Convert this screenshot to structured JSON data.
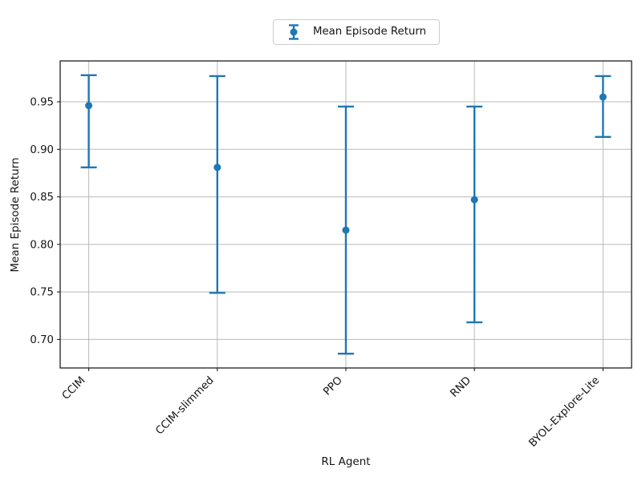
{
  "figure": {
    "xlabel": "RL Agent",
    "ylabel": "Mean Episode Return",
    "legend": {
      "label": "Mean Episode Return"
    },
    "colors": {
      "series": "#1f77b4",
      "grid": "#b9b9b9",
      "spine": "#1f1f1f",
      "text": "#151515",
      "legend_border": "#cccccc",
      "background": "#ffffff"
    }
  },
  "chart_data": {
    "type": "scatter",
    "subtype": "errorbar-points",
    "title": "",
    "xlabel": "RL Agent",
    "ylabel": "Mean Episode Return",
    "categories": [
      "CCIM",
      "CCIM-slimmed",
      "PPO",
      "RND",
      "BYOL-Explore-Lite"
    ],
    "series": [
      {
        "name": "Mean Episode Return",
        "means": [
          0.946,
          0.881,
          0.815,
          0.847,
          0.955
        ],
        "err_upper_abs": [
          0.978,
          0.977,
          0.945,
          0.945,
          0.977
        ],
        "err_lower_abs": [
          0.881,
          0.749,
          0.685,
          0.718,
          0.913
        ]
      }
    ],
    "ylim": [
      0.67,
      0.993
    ],
    "yticks": [
      0.7,
      0.75,
      0.8,
      0.85,
      0.9,
      0.95
    ],
    "ytick_format_decimals": 2,
    "grid": true,
    "legend_position": "upper center above axes",
    "x_tick_label_rotation_deg": 45
  }
}
